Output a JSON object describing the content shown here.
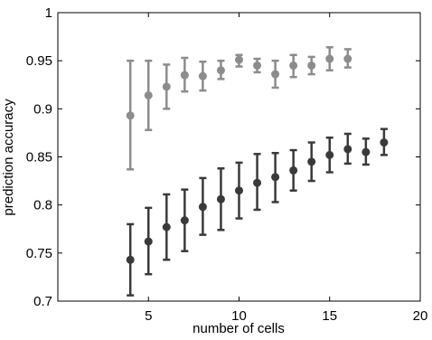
{
  "chart_data": {
    "type": "scatter",
    "title": "",
    "xlabel": "number of cells",
    "ylabel": "prediction accuracy",
    "xlim": [
      0,
      20
    ],
    "ylim": [
      0.7,
      1.0
    ],
    "xticks": [
      5,
      10,
      15,
      20
    ],
    "xtick_labels": [
      "5",
      "10",
      "15",
      "20"
    ],
    "yticks": [
      0.7,
      0.75,
      0.8,
      0.85,
      0.9,
      0.95,
      1.0
    ],
    "ytick_labels": [
      "0.7",
      "0.75",
      "0.8",
      "0.85",
      "0.9",
      "0.95",
      "1"
    ],
    "grid": false,
    "legend": false,
    "error_bars": true,
    "series": [
      {
        "color": "#8c8c8c",
        "points": [
          {
            "x": 4,
            "y": 0.893,
            "err_low": 0.837,
            "err_high": 0.95
          },
          {
            "x": 5,
            "y": 0.914,
            "err_low": 0.878,
            "err_high": 0.95
          },
          {
            "x": 6,
            "y": 0.923,
            "err_low": 0.9,
            "err_high": 0.946
          },
          {
            "x": 7,
            "y": 0.935,
            "err_low": 0.918,
            "err_high": 0.953
          },
          {
            "x": 8,
            "y": 0.934,
            "err_low": 0.919,
            "err_high": 0.949
          },
          {
            "x": 9,
            "y": 0.94,
            "err_low": 0.931,
            "err_high": 0.95
          },
          {
            "x": 10,
            "y": 0.951,
            "err_low": 0.944,
            "err_high": 0.956
          },
          {
            "x": 11,
            "y": 0.945,
            "err_low": 0.938,
            "err_high": 0.952
          },
          {
            "x": 12,
            "y": 0.936,
            "err_low": 0.922,
            "err_high": 0.95
          },
          {
            "x": 13,
            "y": 0.945,
            "err_low": 0.933,
            "err_high": 0.956
          },
          {
            "x": 14,
            "y": 0.945,
            "err_low": 0.936,
            "err_high": 0.954
          },
          {
            "x": 15,
            "y": 0.952,
            "err_low": 0.94,
            "err_high": 0.964
          },
          {
            "x": 16,
            "y": 0.952,
            "err_low": 0.943,
            "err_high": 0.962
          }
        ]
      },
      {
        "color": "#3a3a3a",
        "points": [
          {
            "x": 4,
            "y": 0.743,
            "err_low": 0.706,
            "err_high": 0.78
          },
          {
            "x": 5,
            "y": 0.762,
            "err_low": 0.728,
            "err_high": 0.797
          },
          {
            "x": 6,
            "y": 0.777,
            "err_low": 0.743,
            "err_high": 0.811
          },
          {
            "x": 7,
            "y": 0.784,
            "err_low": 0.752,
            "err_high": 0.816
          },
          {
            "x": 8,
            "y": 0.798,
            "err_low": 0.769,
            "err_high": 0.828
          },
          {
            "x": 9,
            "y": 0.806,
            "err_low": 0.774,
            "err_high": 0.838
          },
          {
            "x": 10,
            "y": 0.815,
            "err_low": 0.786,
            "err_high": 0.844
          },
          {
            "x": 11,
            "y": 0.823,
            "err_low": 0.795,
            "err_high": 0.853
          },
          {
            "x": 12,
            "y": 0.829,
            "err_low": 0.803,
            "err_high": 0.854
          },
          {
            "x": 13,
            "y": 0.836,
            "err_low": 0.815,
            "err_high": 0.857
          },
          {
            "x": 14,
            "y": 0.845,
            "err_low": 0.825,
            "err_high": 0.865
          },
          {
            "x": 15,
            "y": 0.852,
            "err_low": 0.834,
            "err_high": 0.87
          },
          {
            "x": 16,
            "y": 0.858,
            "err_low": 0.843,
            "err_high": 0.874
          },
          {
            "x": 17,
            "y": 0.855,
            "err_low": 0.842,
            "err_high": 0.869
          },
          {
            "x": 18,
            "y": 0.865,
            "err_low": 0.852,
            "err_high": 0.879
          }
        ]
      }
    ]
  }
}
